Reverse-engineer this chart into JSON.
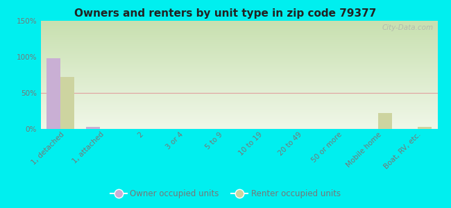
{
  "title": "Owners and renters by unit type in zip code 79377",
  "categories": [
    "1, detached",
    "1, attached",
    "2",
    "3 or 4",
    "5 to 9",
    "10 to 19",
    "20 to 49",
    "50 or more",
    "Mobile home",
    "Boat, RV, etc."
  ],
  "owner_values": [
    98,
    3,
    0,
    0,
    0,
    0,
    0,
    0,
    0,
    0
  ],
  "renter_values": [
    72,
    0,
    0,
    0,
    0,
    0,
    0,
    0,
    22,
    3
  ],
  "owner_color": "#c9afd4",
  "renter_color": "#cdd4a0",
  "background_color": "#00efef",
  "plot_bg_color": "#e8f2d8",
  "ylim": [
    0,
    150
  ],
  "yticks": [
    0,
    50,
    100,
    150
  ],
  "ytick_labels": [
    "0%",
    "50%",
    "100%",
    "150%"
  ],
  "watermark": "City-Data.com",
  "legend_owner": "Owner occupied units",
  "legend_renter": "Renter occupied units",
  "bar_width": 0.35,
  "tick_color": "#777777",
  "grid_color": "#e0a0a0",
  "title_color": "#222222"
}
